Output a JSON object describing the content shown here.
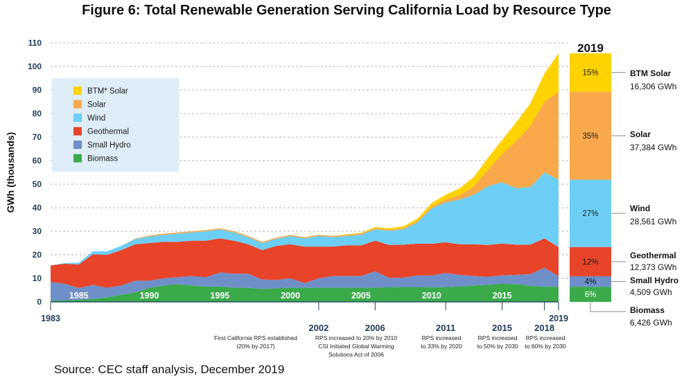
{
  "title": "Figure 6: Total Renewable Generation Serving California Load by Resource Type",
  "source": "Source: CEC staff analysis, December 2019",
  "chart_data": {
    "type": "area",
    "stacked": true,
    "ylabel": "GWh (thousands)",
    "ylim": [
      0,
      110
    ],
    "yticks": [
      0,
      10,
      20,
      30,
      40,
      50,
      60,
      70,
      80,
      90,
      100,
      110
    ],
    "xlim": [
      1983,
      2019
    ],
    "xtick_labels_inside": [
      1985,
      1990,
      1995,
      2000,
      2005,
      2010,
      2015
    ],
    "xaxis_endpoints": [
      1983,
      2019
    ],
    "grid": "dashed horizontal",
    "legend_placement": "top-left",
    "x": [
      1983,
      1984,
      1985,
      1986,
      1987,
      1988,
      1989,
      1990,
      1991,
      1992,
      1993,
      1994,
      1995,
      1996,
      1997,
      1998,
      1999,
      2000,
      2001,
      2002,
      2003,
      2004,
      2005,
      2006,
      2007,
      2008,
      2009,
      2010,
      2011,
      2012,
      2013,
      2014,
      2015,
      2016,
      2017,
      2018,
      2019
    ],
    "series": [
      {
        "name": "Biomass",
        "color": "#3aaa4b",
        "values": [
          0.5,
          0.7,
          0.9,
          1.2,
          2,
          3,
          4,
          6,
          7,
          7.5,
          7,
          6.5,
          6.5,
          6,
          6,
          5.5,
          5.8,
          6,
          6,
          6,
          6,
          6,
          6,
          6,
          6.2,
          6.3,
          6.3,
          6.2,
          6.3,
          6.5,
          7,
          7.2,
          7.8,
          7.5,
          6.8,
          6.5,
          6.4
        ]
      },
      {
        "name": "Small Hydro",
        "color": "#6f8fc9",
        "values": [
          8,
          7,
          5,
          6,
          4,
          4,
          5,
          3,
          3,
          3,
          4,
          4,
          6,
          6,
          6,
          4,
          3.5,
          4,
          2,
          4,
          5,
          5,
          5,
          7,
          4,
          4,
          5,
          5,
          6,
          5,
          4,
          3.5,
          3.5,
          4,
          5,
          8,
          4.5
        ]
      },
      {
        "name": "Geothermal",
        "color": "#e8442a",
        "values": [
          7,
          8.5,
          10,
          13,
          14,
          15,
          15.5,
          16,
          15.5,
          15,
          15,
          15.5,
          14.5,
          14,
          12.5,
          12.5,
          14.5,
          14.5,
          15.5,
          13.5,
          12.5,
          13,
          13,
          13,
          14,
          14,
          13.5,
          13.5,
          13,
          13,
          13.5,
          13.5,
          13.5,
          12.8,
          12.5,
          12.5,
          12.4
        ]
      },
      {
        "name": "Wind",
        "color": "#6dcff6",
        "values": [
          0,
          0.3,
          0.8,
          1.3,
          1.5,
          1.8,
          2.2,
          2.8,
          3,
          3.5,
          3.5,
          4,
          3.8,
          3.5,
          3,
          3,
          3,
          3.5,
          3.5,
          4.5,
          4,
          4,
          4.5,
          4.8,
          6,
          6.5,
          9,
          15,
          17,
          19,
          21,
          25,
          26,
          24,
          24.5,
          28,
          28.6
        ]
      },
      {
        "name": "Solar",
        "color": "#f9a94b",
        "values": [
          0,
          0,
          0,
          0,
          0,
          0,
          0.2,
          0.4,
          0.5,
          0.5,
          0.5,
          0.5,
          0.5,
          0.5,
          0.5,
          0.5,
          0.5,
          0.5,
          0.5,
          0.5,
          0.5,
          0.5,
          0.5,
          0.5,
          0.5,
          0.5,
          0.6,
          0.8,
          1.2,
          1.8,
          3.5,
          7,
          12,
          20,
          26,
          30,
          37.4
        ]
      },
      {
        "name": "BTM* Solar",
        "color": "#ffd200",
        "values": [
          0,
          0,
          0,
          0,
          0,
          0,
          0,
          0,
          0,
          0,
          0,
          0,
          0,
          0,
          0,
          0,
          0,
          0,
          0,
          0,
          0,
          0.2,
          0.3,
          0.5,
          0.6,
          0.8,
          1,
          1.5,
          2,
          3,
          4,
          5,
          6,
          8,
          9.5,
          12,
          16.3
        ]
      }
    ],
    "bar_2019": {
      "label": "2019",
      "segments": [
        {
          "name": "Biomass",
          "percent": "6%",
          "gwh": "6,426 GWh",
          "value": 6.4,
          "color": "#3aaa4b"
        },
        {
          "name": "Small Hydro",
          "percent": "4%",
          "gwh": "4,509 GWh",
          "value": 4.5,
          "color": "#6f8fc9"
        },
        {
          "name": "Geothermal",
          "percent": "12%",
          "gwh": "12,373 GWh",
          "value": 12.4,
          "color": "#e8442a"
        },
        {
          "name": "Wind",
          "percent": "27%",
          "gwh": "28,561 GWh",
          "value": 28.6,
          "color": "#6dcff6"
        },
        {
          "name": "Solar",
          "percent": "35%",
          "gwh": "37,384 GWh",
          "value": 37.4,
          "color": "#f9a94b"
        },
        {
          "name": "BTM Solar",
          "percent": "15%",
          "gwh": "16,306 GWh",
          "value": 16.3,
          "color": "#ffd200"
        }
      ]
    },
    "annotations": [
      {
        "year": "2002",
        "lines": [
          "First California RPS established",
          "(20% by 2017)"
        ]
      },
      {
        "year": "2006",
        "lines": [
          "RPS increased to 20% by 2010",
          "CSI Initiated Global Warming",
          "Solutions Act of 2006"
        ]
      },
      {
        "year": "2011",
        "lines": [
          "RPS increased",
          "to 33% by 2020"
        ]
      },
      {
        "year": "2015",
        "lines": [
          "RPS increased",
          "to 50% by 2030"
        ]
      },
      {
        "year": "2018",
        "lines": [
          "RPS increased",
          "to 60% by 2030"
        ]
      }
    ]
  }
}
